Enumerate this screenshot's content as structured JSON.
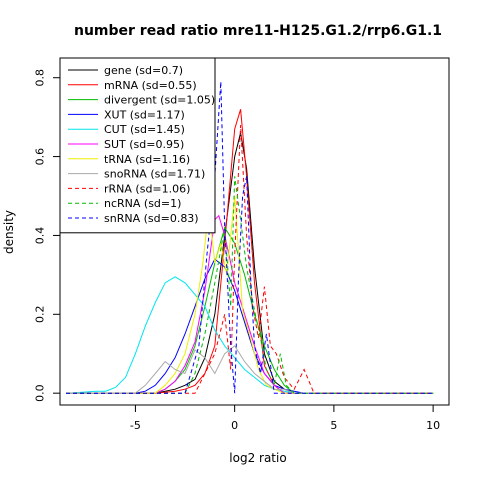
{
  "chart_data": {
    "type": "line",
    "title": "number read ratio mre11-H125.G1.2/rrp6.G1.1",
    "xlabel": "log2 ratio",
    "ylabel": "density",
    "xlim": [
      -8.8,
      10.8
    ],
    "ylim": [
      -0.03,
      0.85
    ],
    "xticks": [
      -5,
      0,
      5,
      10
    ],
    "yticks": [
      0.0,
      0.2,
      0.4,
      0.6,
      0.8
    ],
    "xtick_labels": [
      "-5",
      "0",
      "5",
      "10"
    ],
    "ytick_labels": [
      "0.0",
      "0.2",
      "0.4",
      "0.6",
      "0.8"
    ],
    "grid": false,
    "legend_position": "top-left",
    "series": [
      {
        "name": "gene (sd=0.7)",
        "color": "#000000",
        "dash": "solid",
        "x": [
          -8.5,
          -5,
          -4,
          -3.5,
          -3,
          -2.5,
          -2,
          -1.5,
          -1,
          -0.5,
          0,
          0.3,
          0.6,
          1,
          1.5,
          2,
          2.5,
          3,
          10
        ],
        "y": [
          0,
          0,
          0,
          0.005,
          0.01,
          0.02,
          0.035,
          0.09,
          0.2,
          0.4,
          0.6,
          0.66,
          0.57,
          0.32,
          0.1,
          0.03,
          0.01,
          0,
          0
        ]
      },
      {
        "name": "mRNA (sd=0.55)",
        "color": "#ff0000",
        "dash": "solid",
        "x": [
          -8.5,
          -4,
          -3,
          -2.5,
          -2,
          -1.5,
          -1,
          -0.5,
          0,
          0.3,
          0.6,
          1,
          1.5,
          2,
          2.5,
          10
        ],
        "y": [
          0,
          0,
          0.005,
          0.01,
          0.02,
          0.05,
          0.12,
          0.38,
          0.67,
          0.72,
          0.55,
          0.28,
          0.07,
          0.02,
          0,
          0
        ]
      },
      {
        "name": "divergent (sd=1.05)",
        "color": "#00bb00",
        "dash": "solid",
        "x": [
          -8.5,
          -4,
          -3.5,
          -3,
          -2.5,
          -2,
          -1.5,
          -1,
          -0.5,
          0,
          0.5,
          1,
          1.5,
          2,
          2.5,
          3,
          10
        ],
        "y": [
          0,
          0,
          0.01,
          0.03,
          0.06,
          0.12,
          0.22,
          0.33,
          0.42,
          0.38,
          0.3,
          0.2,
          0.12,
          0.06,
          0.02,
          0,
          0
        ]
      },
      {
        "name": "XUT (sd=1.17)",
        "color": "#0000ff",
        "dash": "solid",
        "x": [
          -8.5,
          -5,
          -4.5,
          -4,
          -3.5,
          -3,
          -2.5,
          -2,
          -1.5,
          -1,
          -0.5,
          0,
          0.5,
          1,
          1.5,
          2,
          2.5,
          3,
          3.5,
          10
        ],
        "y": [
          0,
          0,
          0.005,
          0.02,
          0.05,
          0.09,
          0.15,
          0.22,
          0.29,
          0.34,
          0.32,
          0.26,
          0.18,
          0.1,
          0.05,
          0.02,
          0.01,
          0.005,
          0,
          0
        ]
      },
      {
        "name": "CUT (sd=1.45)",
        "color": "#00e5ee",
        "dash": "solid",
        "x": [
          -8.5,
          -7.5,
          -7,
          -6.5,
          -6,
          -5.5,
          -5,
          -4.5,
          -4,
          -3.5,
          -3,
          -2.5,
          -2,
          -1.5,
          -1,
          -0.5,
          0,
          0.5,
          1,
          1.5,
          2,
          2.5,
          3,
          10
        ],
        "y": [
          0,
          0.003,
          0.005,
          0.005,
          0.015,
          0.04,
          0.1,
          0.17,
          0.23,
          0.28,
          0.295,
          0.28,
          0.25,
          0.22,
          0.16,
          0.12,
          0.09,
          0.06,
          0.04,
          0.02,
          0.01,
          0.005,
          0,
          0
        ]
      },
      {
        "name": "SUT (sd=0.95)",
        "color": "#ff00ff",
        "dash": "solid",
        "x": [
          -8.5,
          -4,
          -3.5,
          -3,
          -2.5,
          -2,
          -1.5,
          -1,
          -0.8,
          -0.5,
          -0.2,
          0,
          0.5,
          1,
          1.5,
          2,
          2.5,
          10
        ],
        "y": [
          0,
          0,
          0.01,
          0.03,
          0.07,
          0.13,
          0.26,
          0.44,
          0.45,
          0.4,
          0.33,
          0.28,
          0.2,
          0.12,
          0.05,
          0.02,
          0,
          0
        ]
      },
      {
        "name": "tRNA (sd=1.16)",
        "color": "#eeee00",
        "dash": "solid",
        "x": [
          -8.5,
          -4,
          -3.5,
          -3,
          -2.5,
          -2,
          -1.6,
          -1.3,
          -1,
          -0.7,
          -0.4,
          0,
          0.4,
          0.8,
          1.2,
          1.6,
          2,
          2.5,
          10
        ],
        "y": [
          0,
          0,
          0.02,
          0.05,
          0.1,
          0.2,
          0.33,
          0.47,
          0.33,
          0.38,
          0.3,
          0.5,
          0.21,
          0.14,
          0.06,
          0.02,
          0.01,
          0,
          0
        ]
      },
      {
        "name": "snoRNA (sd=1.71)",
        "color": "#aaaaaa",
        "dash": "solid",
        "x": [
          -8.5,
          -5,
          -4.5,
          -4,
          -3.5,
          -3,
          -2.5,
          -2,
          -1.5,
          -1,
          -0.5,
          0,
          0.5,
          1,
          1.5,
          2,
          2.5,
          3,
          10
        ],
        "y": [
          0,
          0,
          0.02,
          0.05,
          0.08,
          0.06,
          0.05,
          0.11,
          0.09,
          0.05,
          0.1,
          0.12,
          0.08,
          0.05,
          0.03,
          0.01,
          0.01,
          0,
          0
        ]
      },
      {
        "name": "rRNA (sd=1.06)",
        "color": "#ff0000",
        "dash": "dashed",
        "x": [
          -8.5,
          -2,
          -1.5,
          -1,
          -0.5,
          -0.2,
          0,
          0.3,
          0.6,
          0.9,
          1.2,
          1.5,
          1.8,
          2.1,
          2.5,
          3,
          3.5,
          4,
          10
        ],
        "y": [
          0,
          0,
          0.05,
          0.1,
          0.2,
          0.06,
          0.35,
          0.68,
          0.4,
          0.22,
          0.14,
          0.27,
          0.12,
          0.1,
          0.04,
          0.01,
          0.06,
          0,
          0
        ]
      },
      {
        "name": "ncRNA (sd=1)",
        "color": "#00bb00",
        "dash": "dashed",
        "x": [
          -8.5,
          -2.5,
          -2,
          -1.5,
          -1,
          -0.5,
          -0.2,
          0,
          0.3,
          0.6,
          1,
          1.3,
          1.6,
          2,
          2.3,
          2.6,
          3,
          10
        ],
        "y": [
          0,
          0,
          0.05,
          0.15,
          0.28,
          0.42,
          0.22,
          0.55,
          0.44,
          0.32,
          0.21,
          0.14,
          0.06,
          0.02,
          0.1,
          0.02,
          0,
          0
        ]
      },
      {
        "name": "snRNA (sd=0.83)",
        "color": "#0000ff",
        "dash": "dashed",
        "x": [
          -8.5,
          -2.5,
          -1.8,
          -1.4,
          -1,
          -0.7,
          -0.5,
          -0.2,
          0,
          0.2,
          0.4,
          0.6,
          0.8,
          1,
          1.3,
          1.6,
          2,
          10
        ],
        "y": [
          0,
          0,
          0.12,
          0.35,
          0.55,
          0.79,
          0.42,
          0.12,
          0,
          0.3,
          0.5,
          0.55,
          0.3,
          0.12,
          0.05,
          0.15,
          0,
          0
        ]
      }
    ]
  }
}
